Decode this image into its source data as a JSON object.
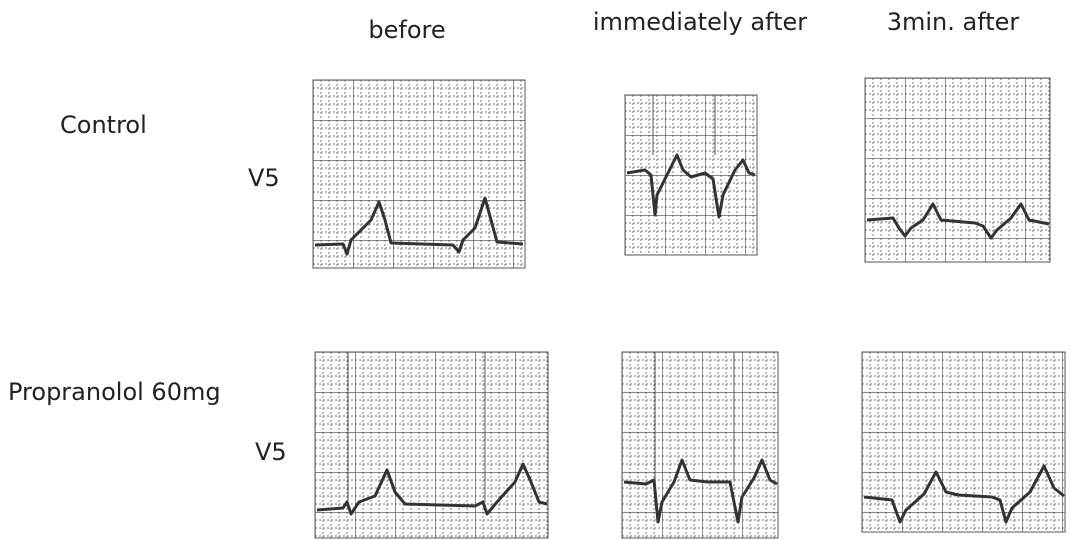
{
  "columns": [
    "before",
    "immediately after",
    "3min. after"
  ],
  "rows": [
    {
      "label": "Control",
      "lead": "V5"
    },
    {
      "label": "Propranolol 60mg",
      "lead": "V5"
    }
  ]
}
